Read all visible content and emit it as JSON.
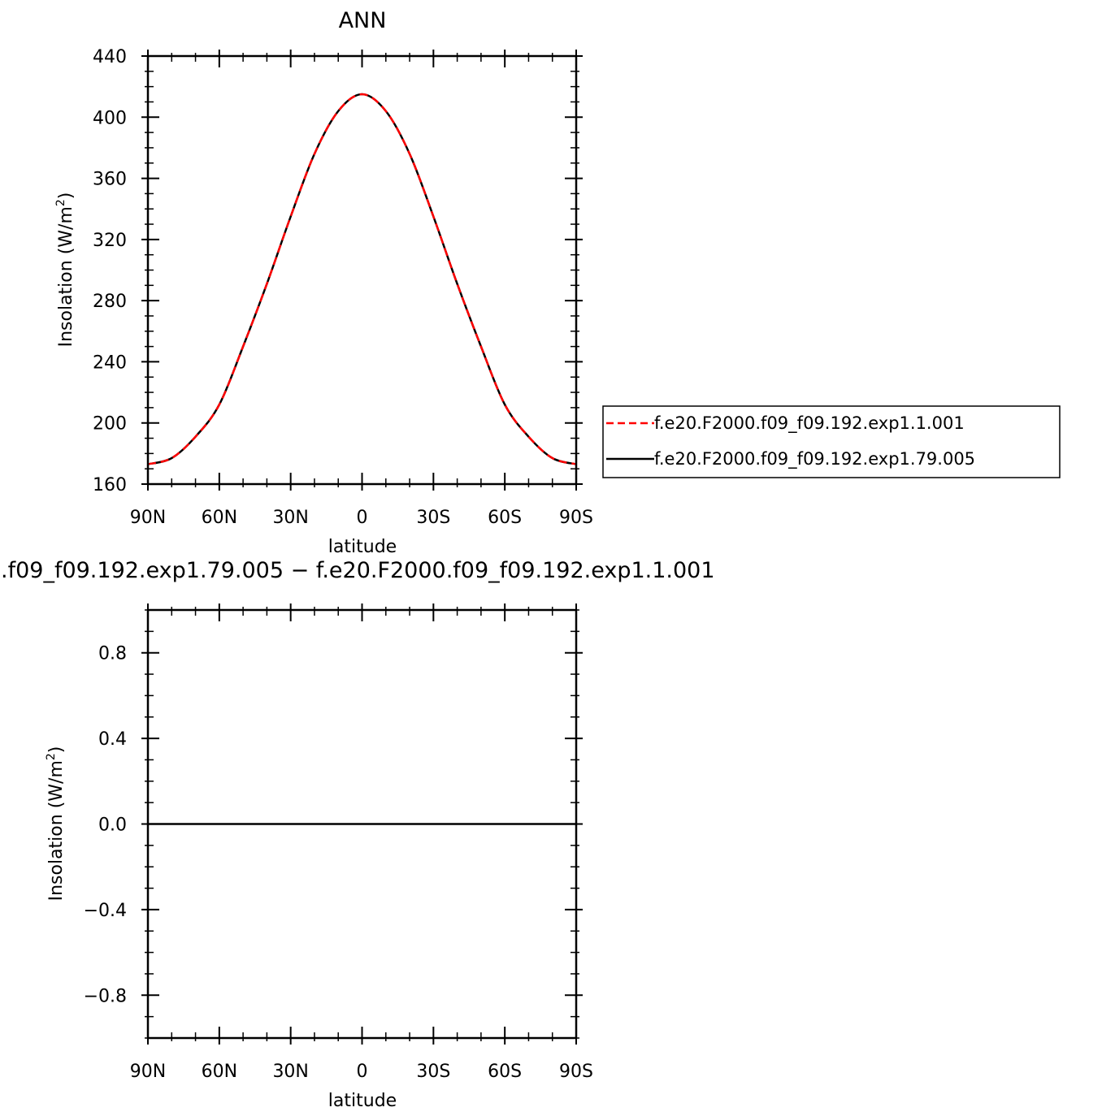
{
  "chart_data": [
    {
      "type": "line",
      "title": "ANN",
      "xlabel": "latitude",
      "ylabel": "Insolation  (W/m²)",
      "ylabel_base": "Insolation  (W/m",
      "ylabel_sup": "2",
      "ylabel_end": ")",
      "xlim": [
        -90,
        90
      ],
      "ylim": [
        160,
        440
      ],
      "xticks": [
        -90,
        -60,
        -30,
        0,
        30,
        60,
        90
      ],
      "xtick_labels": [
        "90N",
        "60N",
        "30N",
        "0",
        "30S",
        "60S",
        "90S"
      ],
      "yticks": [
        160,
        200,
        240,
        280,
        320,
        360,
        400,
        440
      ],
      "ytick_labels": [
        "160",
        "200",
        "240",
        "280",
        "320",
        "360",
        "400",
        "440"
      ],
      "grid": false,
      "legend_position": "right",
      "x": [
        -90,
        -80,
        -70,
        -60,
        -50,
        -40,
        -30,
        -20,
        -10,
        0,
        10,
        20,
        30,
        40,
        50,
        60,
        70,
        80,
        90
      ],
      "series": [
        {
          "name": "f.e20.F2000.f09_f09.192.exp1.1.001",
          "color": "#ff0000",
          "style": "dashed",
          "values": [
            173,
            177,
            191,
            212,
            250,
            291,
            335,
            376,
            404,
            415,
            404,
            376,
            335,
            291,
            250,
            212,
            191,
            177,
            173
          ]
        },
        {
          "name": "f.e20.F2000.f09_f09.192.exp1.79.005",
          "color": "#000000",
          "style": "solid",
          "values": [
            173,
            177,
            191,
            212,
            250,
            291,
            335,
            376,
            404,
            415,
            404,
            376,
            335,
            291,
            250,
            212,
            191,
            177,
            173
          ]
        }
      ]
    },
    {
      "type": "line",
      "title": ".f09_f09.192.exp1.79.005 − f.e20.F2000.f09_f09.192.exp1.1.001",
      "xlabel": "latitude",
      "ylabel": "Insolation  (W/m²)",
      "ylabel_base": "Insolation  (W/m",
      "ylabel_sup": "2",
      "ylabel_end": ")",
      "xlim": [
        -90,
        90
      ],
      "ylim": [
        -1,
        1
      ],
      "xticks": [
        -90,
        -60,
        -30,
        0,
        30,
        60,
        90
      ],
      "xtick_labels": [
        "90N",
        "60N",
        "30N",
        "0",
        "30S",
        "60S",
        "90S"
      ],
      "yticks": [
        -0.8,
        -0.4,
        0.0,
        0.4,
        0.8
      ],
      "ytick_labels": [
        "−0.8",
        "−0.4",
        "0.0",
        "0.4",
        "0.8"
      ],
      "grid": false,
      "x": [
        -90,
        90
      ],
      "series": [
        {
          "color": "#000000",
          "style": "solid",
          "values": [
            0,
            0
          ]
        }
      ]
    }
  ]
}
